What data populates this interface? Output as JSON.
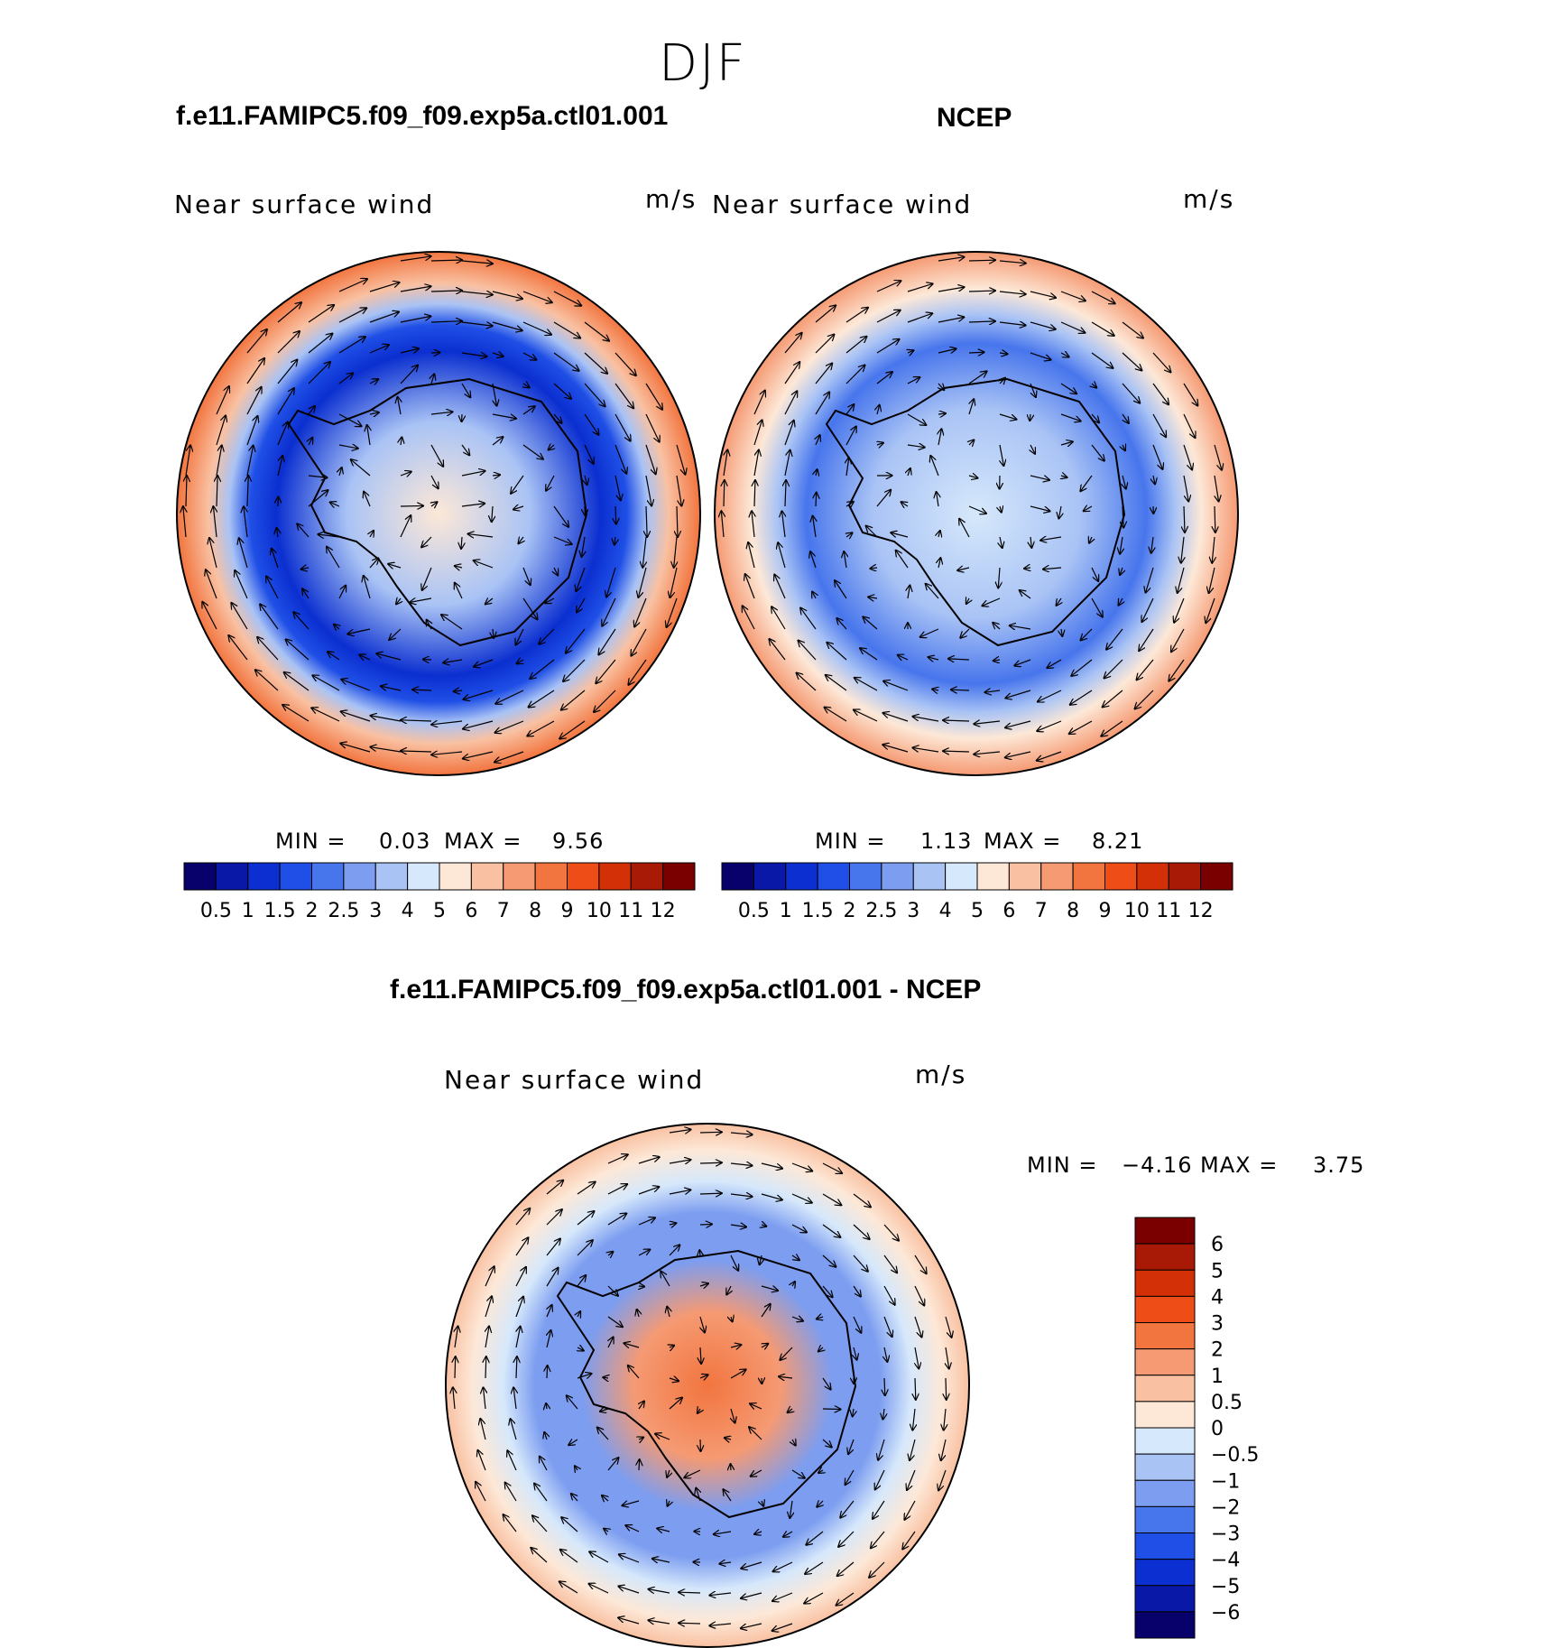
{
  "figure": {
    "season": "DJF"
  },
  "panels": [
    {
      "id": "model",
      "header": "f.e11.FAMIPC5.f09_f09.exp5a.ctl01.001",
      "field_label": "Near surface wind",
      "units": "m/s",
      "stats": {
        "min_label": "MIN =",
        "min": "0.03",
        "max_label": "MAX =",
        "max": "9.56"
      }
    },
    {
      "id": "obs",
      "header": "NCEP",
      "field_label": "Near surface wind",
      "units": "m/s",
      "stats": {
        "min_label": "MIN =",
        "min": "1.13",
        "max_label": "MAX =",
        "max": "8.21"
      }
    },
    {
      "id": "diff",
      "header": "f.e11.FAMIPC5.f09_f09.exp5a.ctl01.001 - NCEP",
      "field_label": "Near surface wind",
      "units": "m/s",
      "stats": {
        "min_label": "MIN =",
        "min": "−4.16",
        "max_label": "MAX =",
        "max": "3.75"
      }
    }
  ],
  "chart_data": [
    {
      "type": "heatmap",
      "projection": "south-polar-stereographic",
      "title": "Near surface wind",
      "units": "m/s",
      "min": 0.03,
      "max": 9.56,
      "colorbar": {
        "orientation": "horizontal",
        "levels": [
          "0.5",
          "1",
          "1.5",
          "2",
          "2.5",
          "3",
          "4",
          "5",
          "6",
          "7",
          "8",
          "9",
          "10",
          "11",
          "12"
        ],
        "colors": [
          "#08006b",
          "#0a18a8",
          "#0b2fd0",
          "#1f4fe6",
          "#4775ec",
          "#7c9df0",
          "#a9c3f5",
          "#d6e8fb",
          "#fde8d7",
          "#f9c1a2",
          "#f59a73",
          "#f2753f",
          "#ee4d17",
          "#d43008",
          "#a81a05",
          "#7a0000"
        ]
      },
      "regions": {
        "south_pole_ring": 3.5,
        "coastal_trough": 0.8,
        "outer_westerlies": 8.5
      }
    },
    {
      "type": "heatmap",
      "projection": "south-polar-stereographic",
      "title": "Near surface wind",
      "units": "m/s",
      "min": 1.13,
      "max": 8.21,
      "colorbar": {
        "orientation": "horizontal",
        "levels": [
          "0.5",
          "1",
          "1.5",
          "2",
          "2.5",
          "3",
          "4",
          "5",
          "6",
          "7",
          "8",
          "9",
          "10",
          "11",
          "12"
        ],
        "colors": [
          "#08006b",
          "#0a18a8",
          "#0b2fd0",
          "#1f4fe6",
          "#4775ec",
          "#7c9df0",
          "#a9c3f5",
          "#d6e8fb",
          "#fde8d7",
          "#f9c1a2",
          "#f59a73",
          "#f2753f",
          "#ee4d17",
          "#d43008",
          "#a81a05",
          "#7a0000"
        ]
      },
      "regions": {
        "interior": 3.0,
        "coastal": 2.0,
        "outer_westerlies": 7.5
      }
    },
    {
      "type": "heatmap",
      "projection": "south-polar-stereographic",
      "title": "Near surface wind",
      "units": "m/s",
      "min": -4.16,
      "max": 3.75,
      "colorbar": {
        "orientation": "vertical",
        "levels": [
          "6",
          "5",
          "4",
          "3",
          "2",
          "1",
          "0.5",
          "0",
          "−0.5",
          "−1",
          "−2",
          "−3",
          "−4",
          "−5",
          "−6"
        ],
        "colors": [
          "#7a0000",
          "#a81a05",
          "#d43008",
          "#ee4d17",
          "#f2753f",
          "#f59a73",
          "#f9c1a2",
          "#fde8d7",
          "#d6e8fb",
          "#a9c3f5",
          "#7c9df0",
          "#4775ec",
          "#1f4fe6",
          "#0b2fd0",
          "#0a18a8",
          "#08006b"
        ]
      },
      "regions": {
        "interior": 2.5,
        "coastal_ring": -1.5,
        "outer": 0.5
      }
    }
  ]
}
